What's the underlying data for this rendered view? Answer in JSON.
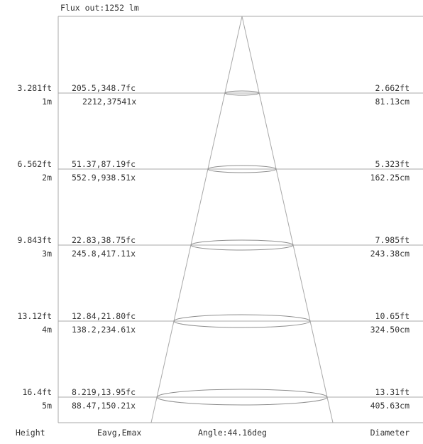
{
  "flux_label": "Flux out:1252 lm",
  "rows": [
    {
      "height_ft": "3.281ft",
      "height_m": "1m",
      "e_fc": "205.5,348.7fc",
      "e_lx": "2212,37541x",
      "diam_ft": "2.662ft",
      "diam_cm": "81.13cm"
    },
    {
      "height_ft": "6.562ft",
      "height_m": "2m",
      "e_fc": "51.37,87.19fc",
      "e_lx": "552.9,938.51x",
      "diam_ft": "5.323ft",
      "diam_cm": "162.25cm"
    },
    {
      "height_ft": "9.843ft",
      "height_m": "3m",
      "e_fc": "22.83,38.75fc",
      "e_lx": "245.8,417.11x",
      "diam_ft": "7.985ft",
      "diam_cm": "243.38cm"
    },
    {
      "height_ft": "13.12ft",
      "height_m": "4m",
      "e_fc": "12.84,21.80fc",
      "e_lx": "138.2,234.61x",
      "diam_ft": "10.65ft",
      "diam_cm": "324.50cm"
    },
    {
      "height_ft": "16.4ft",
      "height_m": "5m",
      "e_fc": "8.219,13.95fc",
      "e_lx": "88.47,150.21x",
      "diam_ft": "13.31ft",
      "diam_cm": "405.63cm"
    }
  ],
  "footer": {
    "height": "Height",
    "eavg": "Eavg,Emax",
    "angle": "Angle:44.16deg",
    "diameter": "Diameter"
  }
}
